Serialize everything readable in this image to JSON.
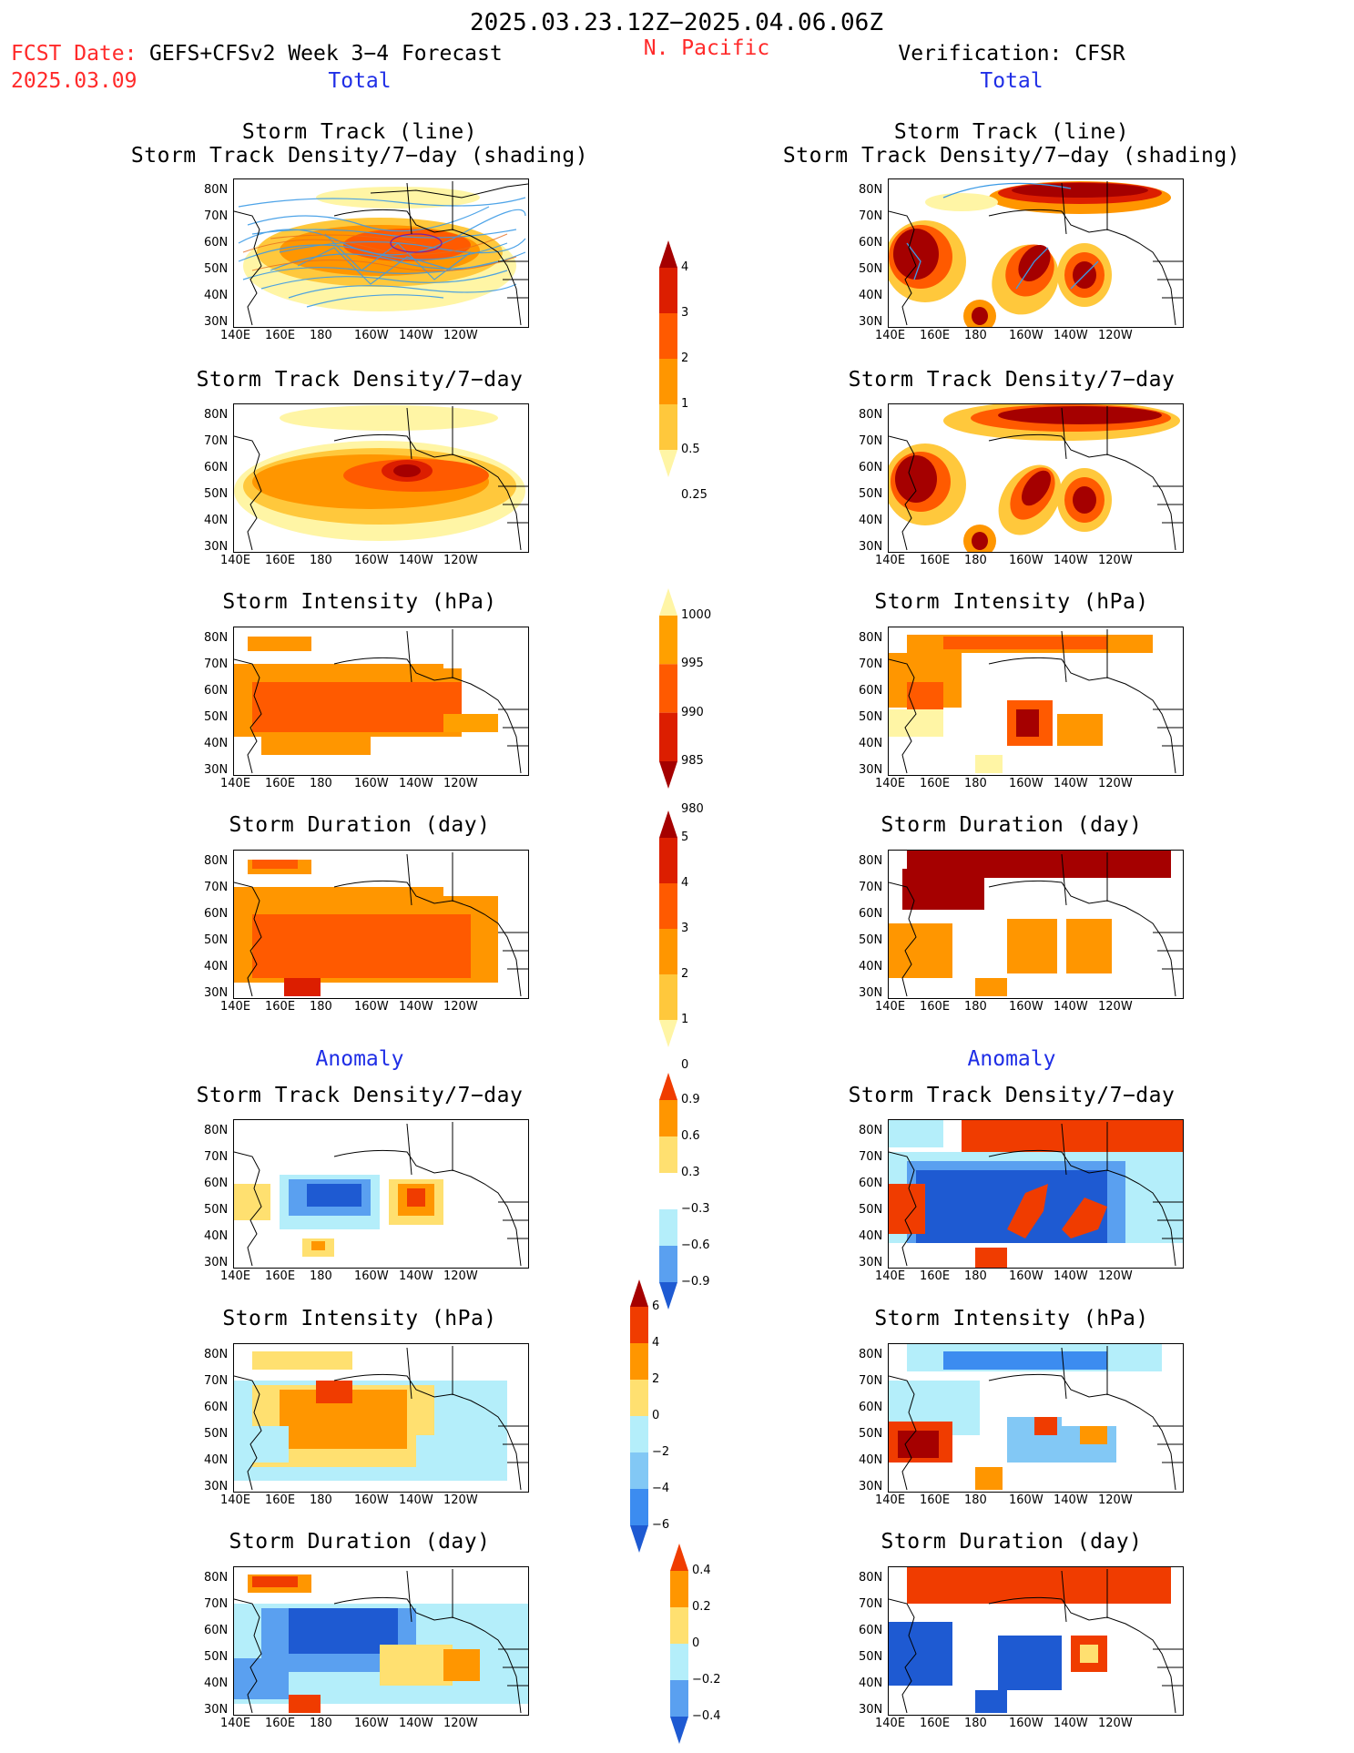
{
  "header": {
    "date_range": "2025.03.23.12Z−2025.04.06.06Z",
    "region": "N. Pacific",
    "fcst_label": "FCST Date:",
    "fcst_model": "GEFS+CFSv2 Week 3−4 Forecast",
    "fcst_date": "2025.03.09",
    "verification": "Verification: CFSR"
  },
  "sections": {
    "total": "Total",
    "anomaly": "Anomaly"
  },
  "panel_titles": {
    "track_line": "Storm Track (line)",
    "track_density_shading": "Storm Track Density/7−day (shading)",
    "track_density": "Storm Track Density/7−day",
    "intensity": "Storm Intensity (hPa)",
    "duration": "Storm Duration (day)"
  },
  "axes": {
    "lat_labels": [
      "80N",
      "70N",
      "60N",
      "50N",
      "40N",
      "30N"
    ],
    "lon_labels": [
      "140E",
      "160E",
      "180",
      "160W",
      "140W",
      "120W"
    ]
  },
  "colorbars": {
    "track_density": {
      "labels": [
        "4",
        "3",
        "2",
        "1",
        "0.5",
        "0.25"
      ],
      "colors": [
        "#a50000",
        "#dc1e00",
        "#ff5a00",
        "#ff9600",
        "#ffc83c",
        "#fff5a5"
      ]
    },
    "intensity": {
      "labels": [
        "1000",
        "995",
        "990",
        "985",
        "980"
      ],
      "colors": [
        "#fff5a5",
        "#ffa000",
        "#ff5a00",
        "#dc1e00",
        "#a50000"
      ]
    },
    "duration": {
      "labels": [
        "5",
        "4",
        "3",
        "2",
        "1",
        "0"
      ],
      "colors": [
        "#a50000",
        "#dc1e00",
        "#ff5a00",
        "#ff9600",
        "#ffc83c",
        "#fff5a5"
      ]
    },
    "density_anom": {
      "labels": [
        "0.9",
        "0.6",
        "0.3",
        "−0.3",
        "−0.6",
        "−0.9"
      ],
      "colors": [
        "#f03c00",
        "#ff9600",
        "#ffe070",
        "#ffffff",
        "#b4eefa",
        "#5aa0f0",
        "#1e5ad2"
      ]
    },
    "intensity_anom": {
      "labels": [
        "6",
        "4",
        "2",
        "0",
        "−2",
        "−4",
        "−6"
      ],
      "colors": [
        "#a50000",
        "#f03c00",
        "#ff9600",
        "#ffe070",
        "#b4eefa",
        "#82c8f5",
        "#3c8cf0",
        "#1e5ad2"
      ]
    },
    "duration_anom": {
      "labels": [
        "0.4",
        "0.2",
        "0",
        "−0.2",
        "−0.4"
      ],
      "colors": [
        "#f03c00",
        "#ff9600",
        "#ffe070",
        "#b4eefa",
        "#5aa0f0",
        "#1e5ad2"
      ]
    }
  },
  "colors": {
    "red_text": "#ff2a2a",
    "blue_text": "#1f2ee6"
  }
}
